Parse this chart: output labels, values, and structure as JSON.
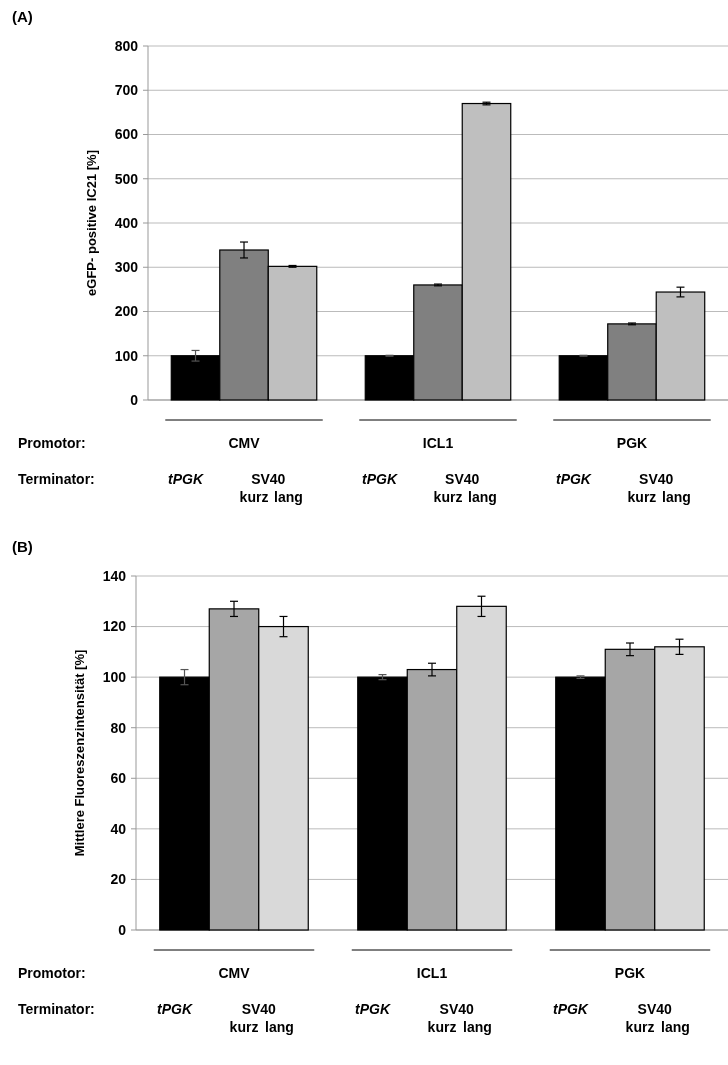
{
  "chart_data": [
    {
      "type": "bar",
      "title": "(A)",
      "ylabel": "eGFP- positive IC21 [%]",
      "categories": [
        "CMV",
        "ICL1",
        "PGK"
      ],
      "ylim": [
        0,
        800
      ],
      "yticks": [
        0,
        100,
        200,
        300,
        400,
        500,
        600,
        700,
        800
      ],
      "grid": "y",
      "annotations": [
        "Promotor:",
        "Terminator:",
        "tPGK",
        "SV40",
        "kurz",
        "lang"
      ],
      "series": [
        {
          "color": "#000000",
          "values": [
            100,
            100,
            100
          ],
          "errors": [
            12,
            1,
            1
          ]
        },
        {
          "color": "#808080",
          "values": [
            339,
            260,
            172
          ],
          "errors": [
            18,
            2,
            2
          ]
        },
        {
          "color": "#bfbfbf",
          "values": [
            302,
            670,
            244
          ],
          "errors": [
            2,
            3,
            11
          ]
        }
      ]
    },
    {
      "type": "bar",
      "title": "(B)",
      "ylabel": "Mittlere Fluoreszenzintensität [%]",
      "categories": [
        "CMV",
        "ICL1",
        "PGK"
      ],
      "ylim": [
        0,
        140
      ],
      "yticks": [
        0,
        20,
        40,
        60,
        80,
        100,
        120,
        140
      ],
      "grid": "y",
      "annotations": [
        "Promotor:",
        "Terminator:",
        "tPGK",
        "SV40",
        "kurz",
        "lang"
      ],
      "series": [
        {
          "color": "#000000",
          "values": [
            100,
            100,
            100
          ],
          "errors": [
            3,
            1,
            0.5
          ]
        },
        {
          "color": "#a6a6a6",
          "values": [
            127,
            103,
            111
          ],
          "errors": [
            3,
            2.5,
            2.5
          ]
        },
        {
          "color": "#d9d9d9",
          "values": [
            120,
            128,
            112
          ],
          "errors": [
            4,
            4,
            3
          ]
        }
      ]
    }
  ]
}
